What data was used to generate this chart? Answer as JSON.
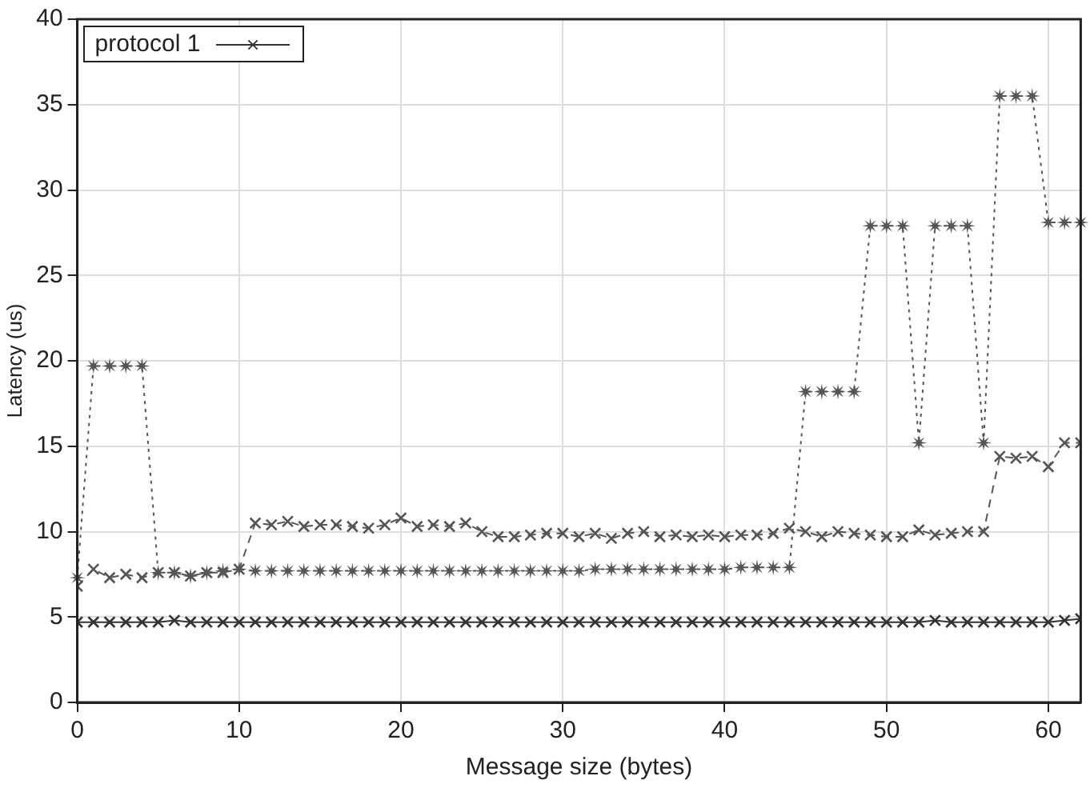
{
  "chart_data": {
    "type": "line",
    "xlabel": "Message size (bytes)",
    "ylabel": "Latency (us)",
    "x": [
      0,
      1,
      2,
      3,
      4,
      5,
      6,
      7,
      8,
      9,
      10,
      11,
      12,
      13,
      14,
      15,
      16,
      17,
      18,
      19,
      20,
      21,
      22,
      23,
      24,
      25,
      26,
      27,
      28,
      29,
      30,
      31,
      32,
      33,
      34,
      35,
      36,
      37,
      38,
      39,
      40,
      41,
      42,
      43,
      44,
      45,
      46,
      47,
      48,
      49,
      50,
      51,
      52,
      53,
      54,
      55,
      56,
      57,
      58,
      59,
      60,
      61,
      62
    ],
    "series": [
      {
        "name": "protocol 1",
        "color": "#333333",
        "marker": "cross",
        "line_style": "solid",
        "values": [
          4.7,
          4.7,
          4.7,
          4.7,
          4.7,
          4.7,
          4.8,
          4.7,
          4.7,
          4.7,
          4.7,
          4.7,
          4.7,
          4.7,
          4.7,
          4.7,
          4.7,
          4.7,
          4.7,
          4.7,
          4.7,
          4.7,
          4.7,
          4.7,
          4.7,
          4.7,
          4.7,
          4.7,
          4.7,
          4.7,
          4.7,
          4.7,
          4.7,
          4.7,
          4.7,
          4.7,
          4.7,
          4.7,
          4.7,
          4.7,
          4.7,
          4.7,
          4.7,
          4.7,
          4.7,
          4.7,
          4.7,
          4.7,
          4.7,
          4.7,
          4.7,
          4.7,
          4.7,
          4.8,
          4.7,
          4.7,
          4.7,
          4.7,
          4.7,
          4.7,
          4.7,
          4.8,
          4.9
        ]
      },
      {
        "color": "#555555",
        "marker": "cross",
        "line_style": "dashed",
        "values": [
          6.8,
          7.8,
          7.3,
          7.5,
          7.3,
          7.6,
          7.6,
          7.4,
          7.6,
          7.6,
          7.8,
          10.5,
          10.4,
          10.6,
          10.3,
          10.4,
          10.4,
          10.3,
          10.2,
          10.4,
          10.8,
          10.3,
          10.4,
          10.3,
          10.5,
          10.0,
          9.7,
          9.7,
          9.8,
          9.9,
          9.9,
          9.7,
          9.9,
          9.6,
          9.9,
          10.0,
          9.7,
          9.8,
          9.7,
          9.8,
          9.7,
          9.8,
          9.8,
          9.9,
          10.2,
          10.0,
          9.7,
          10.0,
          9.9,
          9.8,
          9.7,
          9.7,
          10.1,
          9.8,
          9.9,
          10.0,
          10.0,
          14.4,
          14.3,
          14.4,
          13.8,
          15.2,
          15.2
        ]
      },
      {
        "color": "#555555",
        "marker": "star",
        "line_style": "dotted",
        "values": [
          7.3,
          19.7,
          19.7,
          19.7,
          19.7,
          7.6,
          7.6,
          7.4,
          7.6,
          7.7,
          7.8,
          7.7,
          7.7,
          7.7,
          7.7,
          7.7,
          7.7,
          7.7,
          7.7,
          7.7,
          7.7,
          7.7,
          7.7,
          7.7,
          7.7,
          7.7,
          7.7,
          7.7,
          7.7,
          7.7,
          7.7,
          7.7,
          7.8,
          7.8,
          7.8,
          7.8,
          7.8,
          7.8,
          7.8,
          7.8,
          7.8,
          7.9,
          7.9,
          7.9,
          7.9,
          18.2,
          18.2,
          18.2,
          18.2,
          27.9,
          27.9,
          27.9,
          15.2,
          27.9,
          27.9,
          27.9,
          15.2,
          35.5,
          35.5,
          35.5,
          28.1,
          28.1,
          28.1
        ]
      }
    ],
    "xlim": [
      0,
      62
    ],
    "xticks": [
      0,
      10,
      20,
      30,
      40,
      50,
      60
    ],
    "ylim": [
      0,
      40
    ],
    "yticks": [
      0,
      5,
      10,
      15,
      20,
      25,
      30,
      35,
      40
    ],
    "grid": true,
    "legend": "top left"
  }
}
